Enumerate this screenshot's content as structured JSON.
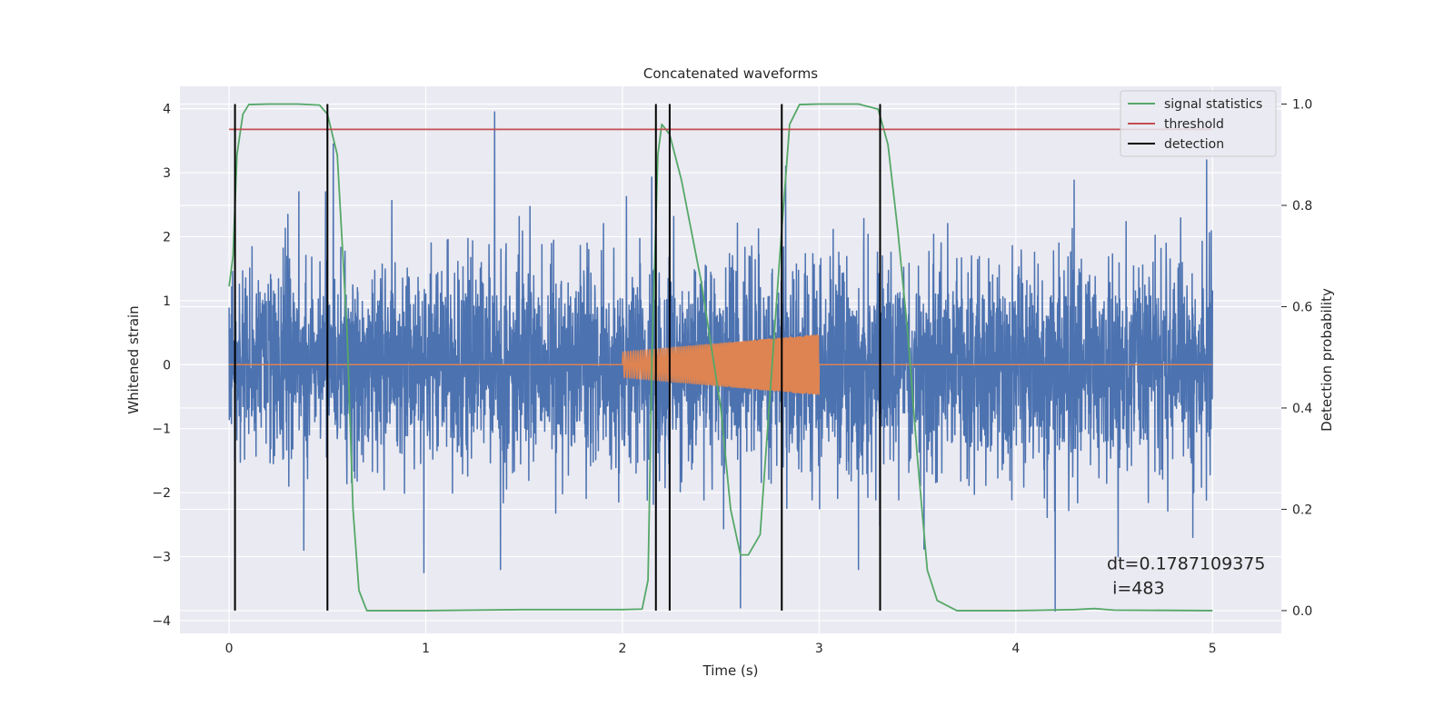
{
  "chart_data": {
    "type": "line",
    "title": "Concatenated waveforms",
    "xlabel": "Time (s)",
    "ylabel": "Whitened strain",
    "y2label": "Detection probability",
    "xlim": [
      -0.25,
      5.35
    ],
    "ylim": [
      -4.2,
      4.35
    ],
    "y2lim": [
      -0.045,
      1.035
    ],
    "xticks": [
      0,
      1,
      2,
      3,
      4,
      5
    ],
    "yticks": [
      -4,
      -3,
      -2,
      -1,
      0,
      1,
      2,
      3,
      4
    ],
    "y2ticks": [
      "0.0",
      "0.2",
      "0.4",
      "0.6",
      "0.8",
      "1.0"
    ],
    "grid": true,
    "legend_position": "top-right",
    "series": [
      {
        "name": "",
        "axis": "left",
        "color": "#4c72b0",
        "kind": "noise",
        "x_range": [
          0,
          5
        ],
        "std": 0.8,
        "spikes": [
          {
            "x": 0.49,
            "y": 2.7
          },
          {
            "x": 0.53,
            "y": 3.45
          },
          {
            "x": 1.35,
            "y": 3.95
          },
          {
            "x": 2.6,
            "y": -3.8
          },
          {
            "x": 4.2,
            "y": -3.85
          },
          {
            "x": 4.97,
            "y": 3.2
          },
          {
            "x": 0.38,
            "y": -2.9
          },
          {
            "x": 1.38,
            "y": -3.2
          },
          {
            "x": 0.99,
            "y": -3.25
          },
          {
            "x": 3.2,
            "y": -3.2
          },
          {
            "x": 4.52,
            "y": -3.0
          },
          {
            "x": 4.9,
            "y": -2.7
          },
          {
            "x": 0.03,
            "y": -1.5
          },
          {
            "x": 2.83,
            "y": 3.1
          }
        ]
      },
      {
        "name": "",
        "axis": "left",
        "color": "#dd8452",
        "kind": "chirp",
        "x_range": [
          0,
          5
        ],
        "chirp_start": 2.0,
        "chirp_end": 3.0,
        "amp_start": 0.2,
        "amp_end": 0.47
      },
      {
        "name": "signal statistics",
        "axis": "right",
        "color": "#55a868",
        "x": [
          0,
          0.02,
          0.04,
          0.07,
          0.1,
          0.2,
          0.35,
          0.46,
          0.5,
          0.55,
          0.6,
          0.63,
          0.66,
          0.7,
          0.8,
          1.0,
          1.5,
          2.0,
          2.1,
          2.13,
          2.15,
          2.18,
          2.2,
          2.24,
          2.3,
          2.4,
          2.5,
          2.55,
          2.6,
          2.64,
          2.7,
          2.8,
          2.85,
          2.9,
          3.0,
          3.2,
          3.3,
          3.35,
          3.4,
          3.45,
          3.5,
          3.55,
          3.6,
          3.7,
          4.0,
          4.3,
          4.4,
          4.5,
          5.0
        ],
        "y": [
          0.64,
          0.7,
          0.9,
          0.98,
          0.999,
          1.0,
          1.0,
          0.998,
          0.98,
          0.9,
          0.55,
          0.2,
          0.04,
          0.0,
          0.0,
          0.0,
          0.002,
          0.002,
          0.003,
          0.06,
          0.5,
          0.9,
          0.96,
          0.94,
          0.85,
          0.65,
          0.4,
          0.2,
          0.11,
          0.11,
          0.15,
          0.7,
          0.96,
          0.999,
          1.0,
          1.0,
          0.99,
          0.92,
          0.75,
          0.55,
          0.3,
          0.08,
          0.02,
          0.0,
          0.0,
          0.002,
          0.004,
          0.001,
          0.0
        ]
      },
      {
        "name": "threshold",
        "axis": "right",
        "color": "#c44e52",
        "x": [
          0,
          5
        ],
        "y": [
          0.95,
          0.95
        ]
      }
    ],
    "detections": {
      "name": "detection",
      "color": "#000000",
      "x": [
        0.03,
        0.5,
        2.17,
        2.24,
        2.81,
        3.31
      ]
    },
    "annotation": {
      "lines": [
        "dt=0.1787109375",
        " i=483"
      ],
      "x": 4.5,
      "y": -3.0
    }
  }
}
